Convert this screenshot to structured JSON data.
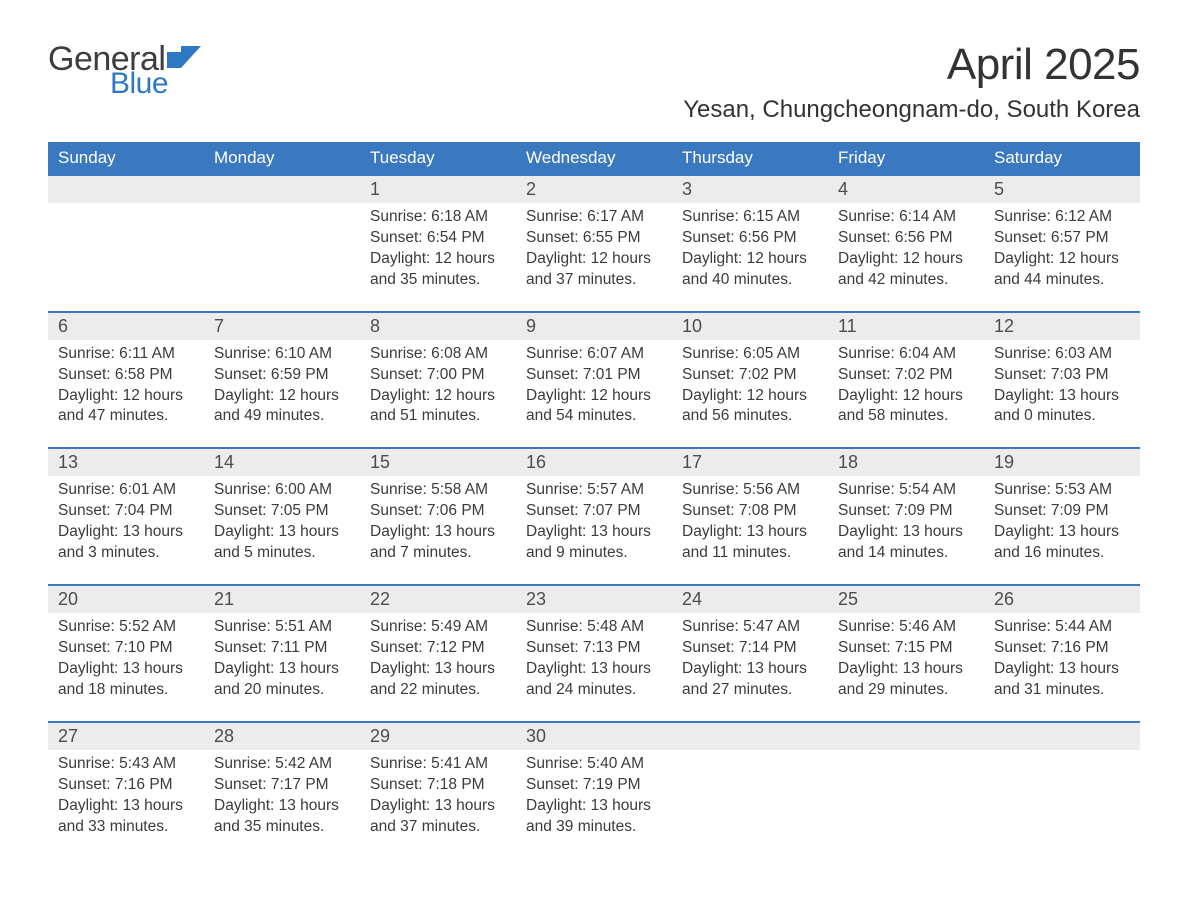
{
  "brand": {
    "word1": "General",
    "word2": "Blue",
    "word1_color": "#3d3d3d",
    "word2_color": "#2f78c4",
    "flag_color": "#2f78c4"
  },
  "title": "April 2025",
  "location": "Yesan, Chungcheongnam-do, South Korea",
  "colors": {
    "header_bg": "#3a79bf",
    "header_text": "#ffffff",
    "daynum_bg": "#ececec",
    "daynum_text": "#4d4d4d",
    "body_text": "#3b3b3b",
    "row_border": "#3a79bf",
    "page_bg": "#ffffff"
  },
  "typography": {
    "title_fontsize": 44,
    "location_fontsize": 24,
    "weekday_fontsize": 17,
    "daynum_fontsize": 18,
    "body_fontsize": 15.5
  },
  "weekdays": [
    "Sunday",
    "Monday",
    "Tuesday",
    "Wednesday",
    "Thursday",
    "Friday",
    "Saturday"
  ],
  "weeks": [
    {
      "days": [
        {
          "n": "",
          "sunrise": "",
          "sunset": "",
          "daylight1": "",
          "daylight2": ""
        },
        {
          "n": "",
          "sunrise": "",
          "sunset": "",
          "daylight1": "",
          "daylight2": ""
        },
        {
          "n": "1",
          "sunrise": "Sunrise: 6:18 AM",
          "sunset": "Sunset: 6:54 PM",
          "daylight1": "Daylight: 12 hours",
          "daylight2": "and 35 minutes."
        },
        {
          "n": "2",
          "sunrise": "Sunrise: 6:17 AM",
          "sunset": "Sunset: 6:55 PM",
          "daylight1": "Daylight: 12 hours",
          "daylight2": "and 37 minutes."
        },
        {
          "n": "3",
          "sunrise": "Sunrise: 6:15 AM",
          "sunset": "Sunset: 6:56 PM",
          "daylight1": "Daylight: 12 hours",
          "daylight2": "and 40 minutes."
        },
        {
          "n": "4",
          "sunrise": "Sunrise: 6:14 AM",
          "sunset": "Sunset: 6:56 PM",
          "daylight1": "Daylight: 12 hours",
          "daylight2": "and 42 minutes."
        },
        {
          "n": "5",
          "sunrise": "Sunrise: 6:12 AM",
          "sunset": "Sunset: 6:57 PM",
          "daylight1": "Daylight: 12 hours",
          "daylight2": "and 44 minutes."
        }
      ]
    },
    {
      "days": [
        {
          "n": "6",
          "sunrise": "Sunrise: 6:11 AM",
          "sunset": "Sunset: 6:58 PM",
          "daylight1": "Daylight: 12 hours",
          "daylight2": "and 47 minutes."
        },
        {
          "n": "7",
          "sunrise": "Sunrise: 6:10 AM",
          "sunset": "Sunset: 6:59 PM",
          "daylight1": "Daylight: 12 hours",
          "daylight2": "and 49 minutes."
        },
        {
          "n": "8",
          "sunrise": "Sunrise: 6:08 AM",
          "sunset": "Sunset: 7:00 PM",
          "daylight1": "Daylight: 12 hours",
          "daylight2": "and 51 minutes."
        },
        {
          "n": "9",
          "sunrise": "Sunrise: 6:07 AM",
          "sunset": "Sunset: 7:01 PM",
          "daylight1": "Daylight: 12 hours",
          "daylight2": "and 54 minutes."
        },
        {
          "n": "10",
          "sunrise": "Sunrise: 6:05 AM",
          "sunset": "Sunset: 7:02 PM",
          "daylight1": "Daylight: 12 hours",
          "daylight2": "and 56 minutes."
        },
        {
          "n": "11",
          "sunrise": "Sunrise: 6:04 AM",
          "sunset": "Sunset: 7:02 PM",
          "daylight1": "Daylight: 12 hours",
          "daylight2": "and 58 minutes."
        },
        {
          "n": "12",
          "sunrise": "Sunrise: 6:03 AM",
          "sunset": "Sunset: 7:03 PM",
          "daylight1": "Daylight: 13 hours",
          "daylight2": "and 0 minutes."
        }
      ]
    },
    {
      "days": [
        {
          "n": "13",
          "sunrise": "Sunrise: 6:01 AM",
          "sunset": "Sunset: 7:04 PM",
          "daylight1": "Daylight: 13 hours",
          "daylight2": "and 3 minutes."
        },
        {
          "n": "14",
          "sunrise": "Sunrise: 6:00 AM",
          "sunset": "Sunset: 7:05 PM",
          "daylight1": "Daylight: 13 hours",
          "daylight2": "and 5 minutes."
        },
        {
          "n": "15",
          "sunrise": "Sunrise: 5:58 AM",
          "sunset": "Sunset: 7:06 PM",
          "daylight1": "Daylight: 13 hours",
          "daylight2": "and 7 minutes."
        },
        {
          "n": "16",
          "sunrise": "Sunrise: 5:57 AM",
          "sunset": "Sunset: 7:07 PM",
          "daylight1": "Daylight: 13 hours",
          "daylight2": "and 9 minutes."
        },
        {
          "n": "17",
          "sunrise": "Sunrise: 5:56 AM",
          "sunset": "Sunset: 7:08 PM",
          "daylight1": "Daylight: 13 hours",
          "daylight2": "and 11 minutes."
        },
        {
          "n": "18",
          "sunrise": "Sunrise: 5:54 AM",
          "sunset": "Sunset: 7:09 PM",
          "daylight1": "Daylight: 13 hours",
          "daylight2": "and 14 minutes."
        },
        {
          "n": "19",
          "sunrise": "Sunrise: 5:53 AM",
          "sunset": "Sunset: 7:09 PM",
          "daylight1": "Daylight: 13 hours",
          "daylight2": "and 16 minutes."
        }
      ]
    },
    {
      "days": [
        {
          "n": "20",
          "sunrise": "Sunrise: 5:52 AM",
          "sunset": "Sunset: 7:10 PM",
          "daylight1": "Daylight: 13 hours",
          "daylight2": "and 18 minutes."
        },
        {
          "n": "21",
          "sunrise": "Sunrise: 5:51 AM",
          "sunset": "Sunset: 7:11 PM",
          "daylight1": "Daylight: 13 hours",
          "daylight2": "and 20 minutes."
        },
        {
          "n": "22",
          "sunrise": "Sunrise: 5:49 AM",
          "sunset": "Sunset: 7:12 PM",
          "daylight1": "Daylight: 13 hours",
          "daylight2": "and 22 minutes."
        },
        {
          "n": "23",
          "sunrise": "Sunrise: 5:48 AM",
          "sunset": "Sunset: 7:13 PM",
          "daylight1": "Daylight: 13 hours",
          "daylight2": "and 24 minutes."
        },
        {
          "n": "24",
          "sunrise": "Sunrise: 5:47 AM",
          "sunset": "Sunset: 7:14 PM",
          "daylight1": "Daylight: 13 hours",
          "daylight2": "and 27 minutes."
        },
        {
          "n": "25",
          "sunrise": "Sunrise: 5:46 AM",
          "sunset": "Sunset: 7:15 PM",
          "daylight1": "Daylight: 13 hours",
          "daylight2": "and 29 minutes."
        },
        {
          "n": "26",
          "sunrise": "Sunrise: 5:44 AM",
          "sunset": "Sunset: 7:16 PM",
          "daylight1": "Daylight: 13 hours",
          "daylight2": "and 31 minutes."
        }
      ]
    },
    {
      "days": [
        {
          "n": "27",
          "sunrise": "Sunrise: 5:43 AM",
          "sunset": "Sunset: 7:16 PM",
          "daylight1": "Daylight: 13 hours",
          "daylight2": "and 33 minutes."
        },
        {
          "n": "28",
          "sunrise": "Sunrise: 5:42 AM",
          "sunset": "Sunset: 7:17 PM",
          "daylight1": "Daylight: 13 hours",
          "daylight2": "and 35 minutes."
        },
        {
          "n": "29",
          "sunrise": "Sunrise: 5:41 AM",
          "sunset": "Sunset: 7:18 PM",
          "daylight1": "Daylight: 13 hours",
          "daylight2": "and 37 minutes."
        },
        {
          "n": "30",
          "sunrise": "Sunrise: 5:40 AM",
          "sunset": "Sunset: 7:19 PM",
          "daylight1": "Daylight: 13 hours",
          "daylight2": "and 39 minutes."
        },
        {
          "n": "",
          "sunrise": "",
          "sunset": "",
          "daylight1": "",
          "daylight2": ""
        },
        {
          "n": "",
          "sunrise": "",
          "sunset": "",
          "daylight1": "",
          "daylight2": ""
        },
        {
          "n": "",
          "sunrise": "",
          "sunset": "",
          "daylight1": "",
          "daylight2": ""
        }
      ]
    }
  ]
}
